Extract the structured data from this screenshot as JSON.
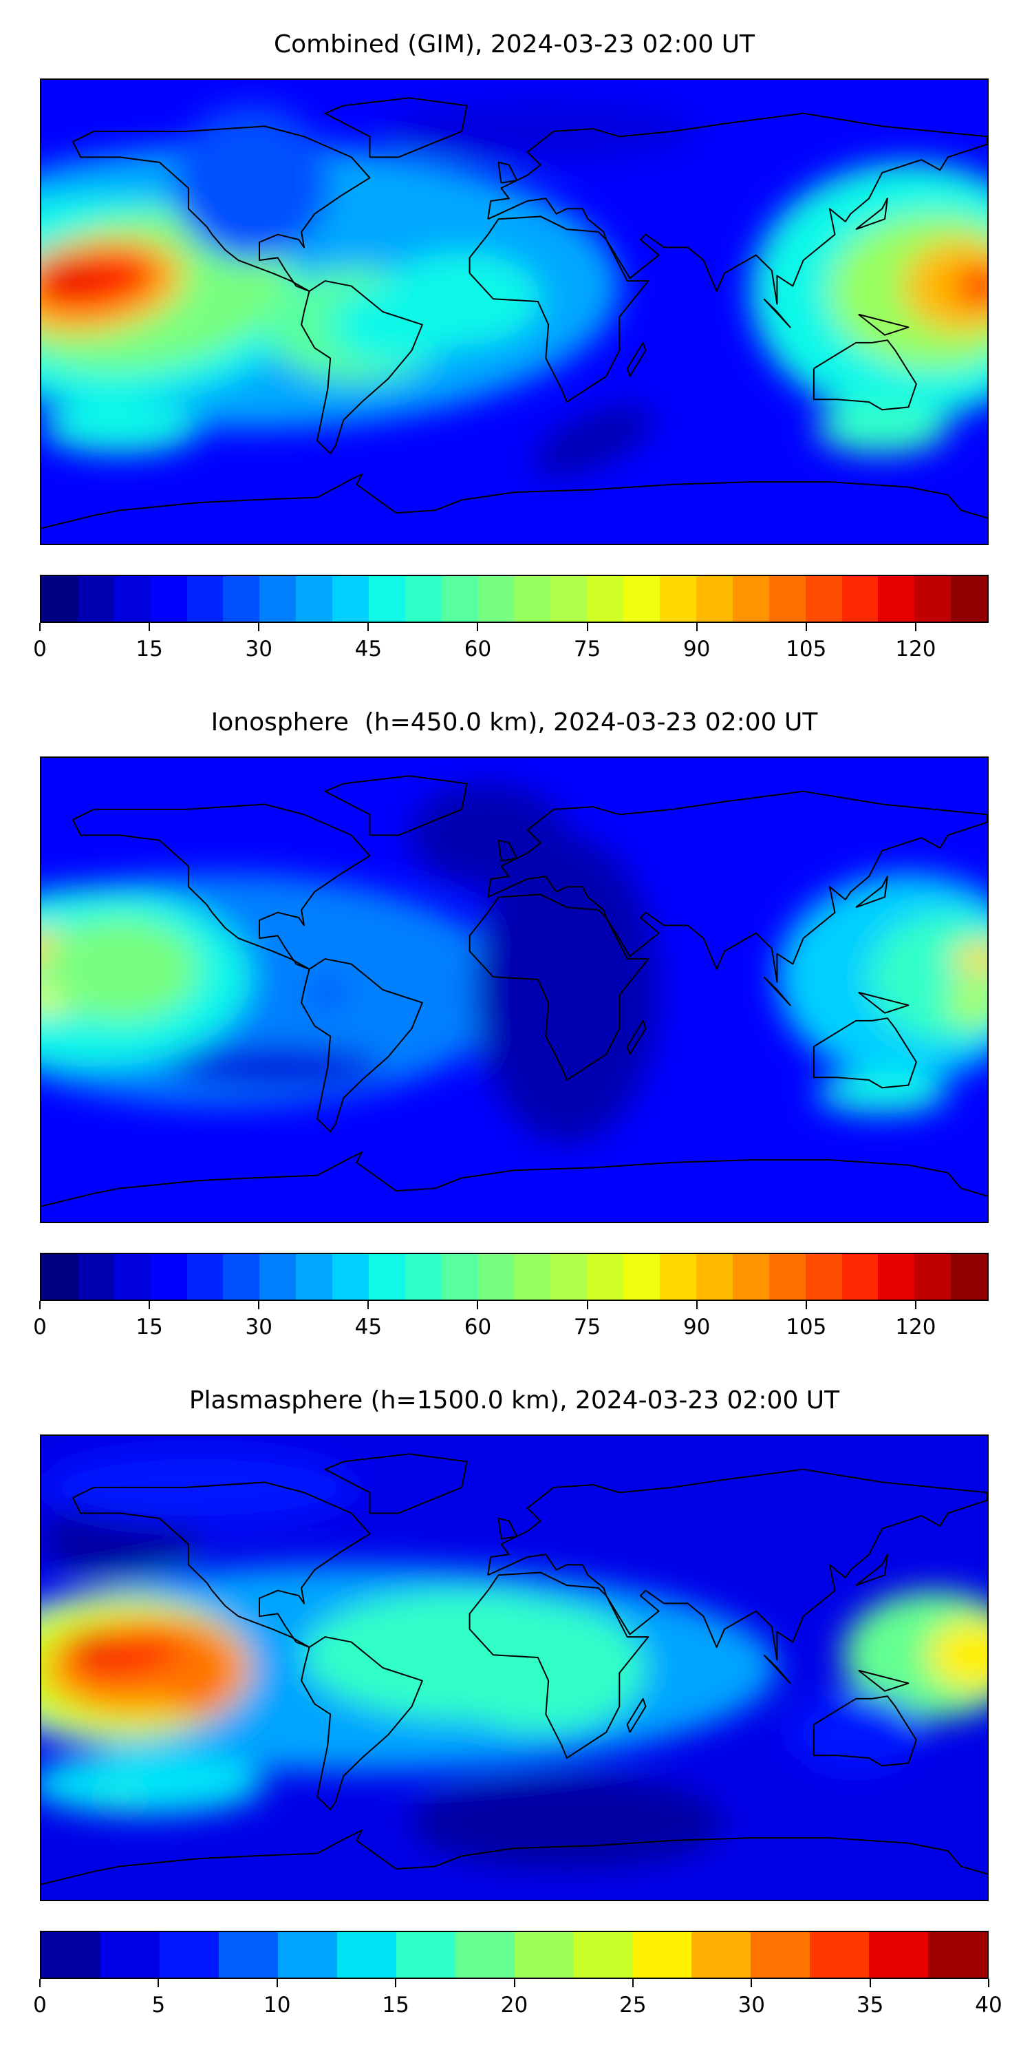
{
  "chart_data": [
    {
      "type": "heatmap",
      "title": "Combined (GIM), 2024-03-23 02:00 UT",
      "projection": "equirectangular world map with coastlines",
      "colorbar": {
        "min": 0,
        "max": 130,
        "step": 5,
        "ticks": [
          0,
          15,
          30,
          45,
          60,
          75,
          90,
          105,
          120
        ],
        "tick_labels": [
          "0",
          "15",
          "30",
          "45",
          "60",
          "75",
          "90",
          "105",
          "120"
        ],
        "colors": [
          "#000080",
          "#0000b0",
          "#0000de",
          "#0000ff",
          "#0024ff",
          "#0050ff",
          "#0080ff",
          "#00a8ff",
          "#00d0ff",
          "#10f8e8",
          "#30ffc8",
          "#58ffa0",
          "#78ff80",
          "#98ff60",
          "#b0ff48",
          "#d0ff28",
          "#f0ff10",
          "#ffd800",
          "#ffb800",
          "#ff9400",
          "#ff7000",
          "#ff4c00",
          "#ff2800",
          "#e80000",
          "#c00000",
          "#900000"
        ]
      }
    },
    {
      "type": "heatmap",
      "title": "Ionosphere  (h=450.0 km), 2024-03-23 02:00 UT",
      "projection": "equirectangular world map with coastlines",
      "colorbar": {
        "min": 0,
        "max": 130,
        "step": 5,
        "ticks": [
          0,
          15,
          30,
          45,
          60,
          75,
          90,
          105,
          120
        ],
        "tick_labels": [
          "0",
          "15",
          "30",
          "45",
          "60",
          "75",
          "90",
          "105",
          "120"
        ],
        "colors": [
          "#000080",
          "#0000b0",
          "#0000de",
          "#0000ff",
          "#0024ff",
          "#0050ff",
          "#0080ff",
          "#00a8ff",
          "#00d0ff",
          "#10f8e8",
          "#30ffc8",
          "#58ffa0",
          "#78ff80",
          "#98ff60",
          "#b0ff48",
          "#d0ff28",
          "#f0ff10",
          "#ffd800",
          "#ffb800",
          "#ff9400",
          "#ff7000",
          "#ff4c00",
          "#ff2800",
          "#e80000",
          "#c00000",
          "#900000"
        ]
      }
    },
    {
      "type": "heatmap",
      "title": "Plasmasphere (h=1500.0 km), 2024-03-23 02:00 UT",
      "projection": "equirectangular world map with coastlines",
      "colorbar": {
        "min": 0,
        "max": 40,
        "step": 2.5,
        "ticks": [
          0,
          5,
          10,
          15,
          20,
          25,
          30,
          35,
          40
        ],
        "tick_labels": [
          "0",
          "5",
          "10",
          "15",
          "20",
          "25",
          "30",
          "35",
          "40"
        ],
        "colors": [
          "#0000a0",
          "#0000e8",
          "#0018ff",
          "#0060ff",
          "#00a4ff",
          "#00e4f8",
          "#30ffc8",
          "#64ff90",
          "#9cff58",
          "#c8ff28",
          "#fff000",
          "#ffb000",
          "#ff7400",
          "#ff3800",
          "#e80000",
          "#a00000"
        ]
      }
    }
  ]
}
